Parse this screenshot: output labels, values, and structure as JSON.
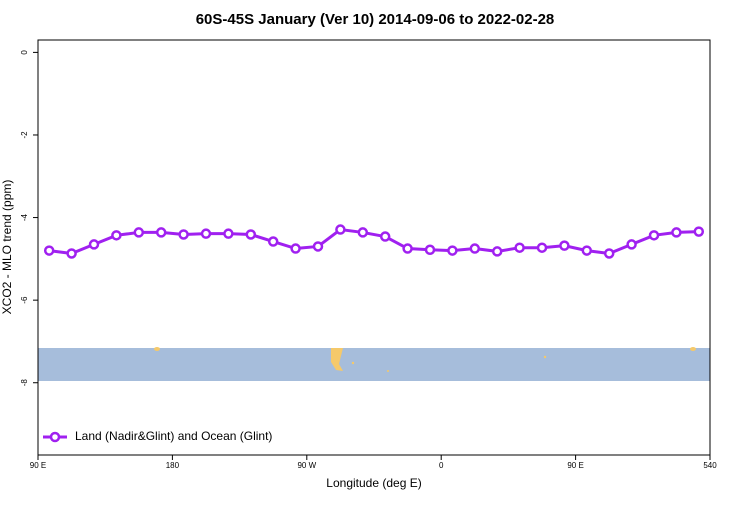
{
  "chart_data": {
    "type": "line",
    "title": "60S-45S January (Ver 10)   2014-09-06 to 2022-02-28",
    "x_label": "Longitude (deg E)",
    "y_label": "XCO2 - MLO trend (ppm)",
    "x": [
      97.5,
      112.5,
      127.5,
      142.5,
      157.5,
      172.5,
      187.5,
      202.5,
      217.5,
      232.5,
      247.5,
      262.5,
      277.5,
      292.5,
      307.5,
      322.5,
      337.5,
      352.5,
      367.5,
      382.5,
      397.5,
      412.5,
      427.5,
      442.5,
      457.5,
      472.5,
      487.5,
      502.5,
      517.5,
      532.5
    ],
    "series": [
      {
        "name": "Land (Nadir&Glint) and Ocean (Glint)",
        "color": "#a020f0",
        "values": [
          -4.8,
          -4.87,
          -4.65,
          -4.43,
          -4.36,
          -4.36,
          -4.41,
          -4.39,
          -4.39,
          -4.41,
          -4.58,
          -4.75,
          -4.7,
          -4.29,
          -4.36,
          -4.46,
          -4.75,
          -4.78,
          -4.8,
          -4.75,
          -4.82,
          -4.73,
          -4.73,
          -4.68,
          -4.8,
          -4.87,
          -4.65,
          -4.43,
          -4.36,
          -4.34
        ]
      }
    ],
    "xlim": [
      90,
      540
    ],
    "xticks": [
      {
        "value": 90,
        "label": "90 E"
      },
      180,
      {
        "value": 270,
        "label": "90 W"
      },
      {
        "value": 360,
        "label": "0"
      },
      {
        "value": 450,
        "label": "90 E"
      },
      540
    ],
    "ylim": [
      -9.75,
      0.3
    ],
    "yticks": [
      0,
      -2,
      -4,
      -6,
      -8
    ],
    "legend": "bottom-left"
  }
}
